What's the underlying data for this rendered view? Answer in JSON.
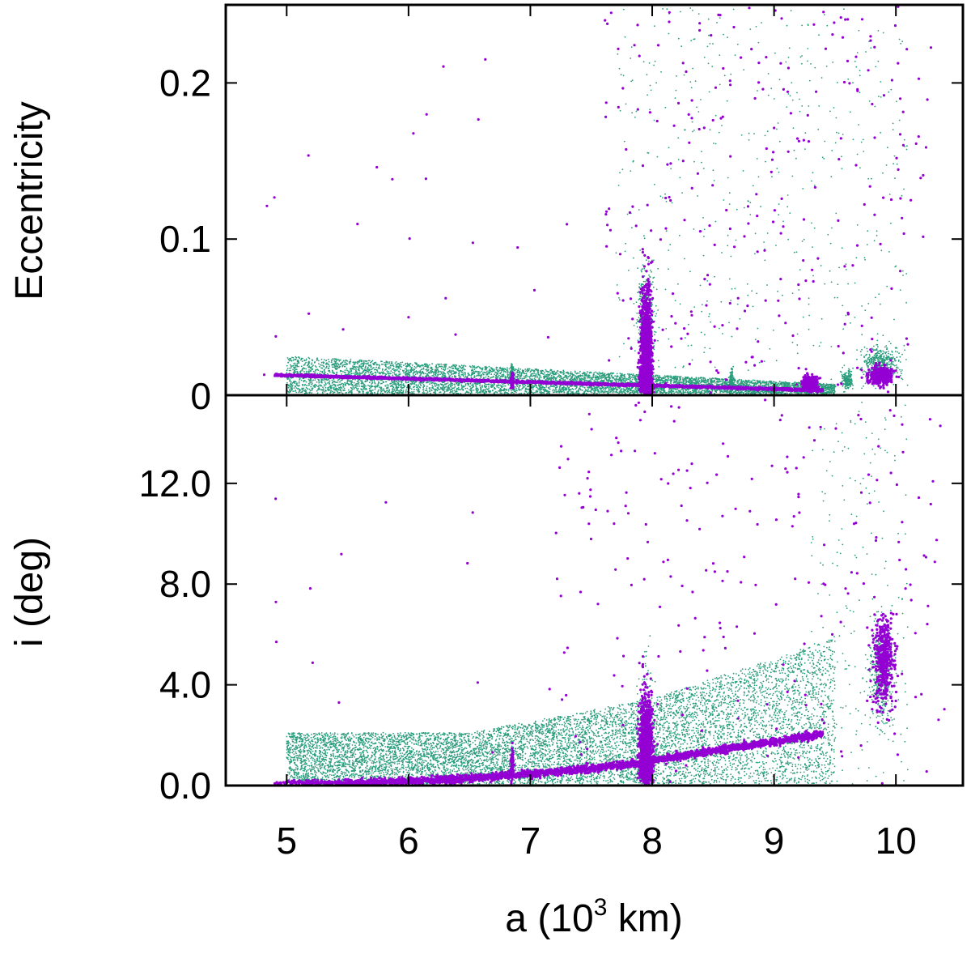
{
  "chart_data": [
    {
      "type": "scatter",
      "panel": "top",
      "title": "",
      "xlabel": "",
      "ylabel": "Eccentricity",
      "xlim": [
        4.5,
        10.55
      ],
      "ylim": [
        0,
        0.25
      ],
      "x_ticks": [
        5,
        6,
        7,
        8,
        9,
        10
      ],
      "y_ticks": [
        0,
        0.1,
        0.2
      ],
      "y_tick_labels": [
        "0",
        "0.1",
        "0.2"
      ],
      "grid": false,
      "legend": "none",
      "series": [
        {
          "color": "#2a9d7c",
          "marker": "small dot",
          "description_points": [
            [
              5.0,
              0.025
            ],
            [
              5.5,
              0.022
            ],
            [
              6.0,
              0.018
            ],
            [
              6.5,
              0.014
            ],
            [
              7.0,
              0.011
            ],
            [
              7.5,
              0.008
            ],
            [
              8.0,
              0.06
            ],
            [
              8.5,
              0.006
            ],
            [
              9.0,
              0.005
            ],
            [
              9.5,
              0.01
            ],
            [
              9.9,
              0.02
            ]
          ]
        },
        {
          "color": "#9400d3",
          "marker": "dot",
          "description_points": [
            [
              4.9,
              0.013
            ],
            [
              5.5,
              0.011
            ],
            [
              6.0,
              0.009
            ],
            [
              6.5,
              0.008
            ],
            [
              7.0,
              0.007
            ],
            [
              7.5,
              0.005
            ],
            [
              7.95,
              0.04
            ],
            [
              7.95,
              0.1
            ],
            [
              8.5,
              0.005
            ],
            [
              9.0,
              0.004
            ],
            [
              9.3,
              0.01
            ],
            [
              9.9,
              0.015
            ]
          ]
        }
      ]
    },
    {
      "type": "scatter",
      "panel": "bottom",
      "title": "",
      "xlabel": "a (10^3 km)",
      "ylabel": "i (deg)",
      "xlim": [
        4.5,
        10.55
      ],
      "ylim": [
        0,
        15.5
      ],
      "x_ticks": [
        5,
        6,
        7,
        8,
        9,
        10
      ],
      "x_tick_labels": [
        "5",
        "6",
        "7",
        "8",
        "9",
        "10"
      ],
      "y_ticks": [
        0,
        4,
        8,
        12
      ],
      "y_tick_labels": [
        "0.0",
        "4.0",
        "8.0",
        "12.0"
      ],
      "grid": false,
      "legend": "none",
      "series": [
        {
          "color": "#2a9d7c",
          "marker": "small dot",
          "description_points": [
            [
              5.0,
              1.0
            ],
            [
              5.5,
              1.2
            ],
            [
              6.0,
              1.2
            ],
            [
              6.5,
              1.4
            ],
            [
              7.0,
              1.6
            ],
            [
              7.5,
              1.9
            ],
            [
              8.0,
              2.2
            ],
            [
              8.5,
              2.7
            ],
            [
              9.0,
              3.3
            ],
            [
              9.5,
              3.8
            ],
            [
              9.9,
              5.0
            ]
          ]
        },
        {
          "color": "#9400d3",
          "marker": "dot",
          "description_points": [
            [
              5.0,
              0.05
            ],
            [
              5.5,
              0.1
            ],
            [
              6.0,
              0.2
            ],
            [
              6.5,
              0.35
            ],
            [
              7.0,
              0.5
            ],
            [
              7.5,
              0.7
            ],
            [
              7.95,
              1.5
            ],
            [
              8.5,
              1.2
            ],
            [
              9.0,
              1.7
            ],
            [
              9.3,
              2.0
            ],
            [
              9.9,
              5.0
            ]
          ]
        }
      ]
    }
  ],
  "figure": {
    "x_axis_title_prefix": "a (10",
    "x_axis_title_sup": "3",
    "x_axis_title_suffix": " km)"
  }
}
